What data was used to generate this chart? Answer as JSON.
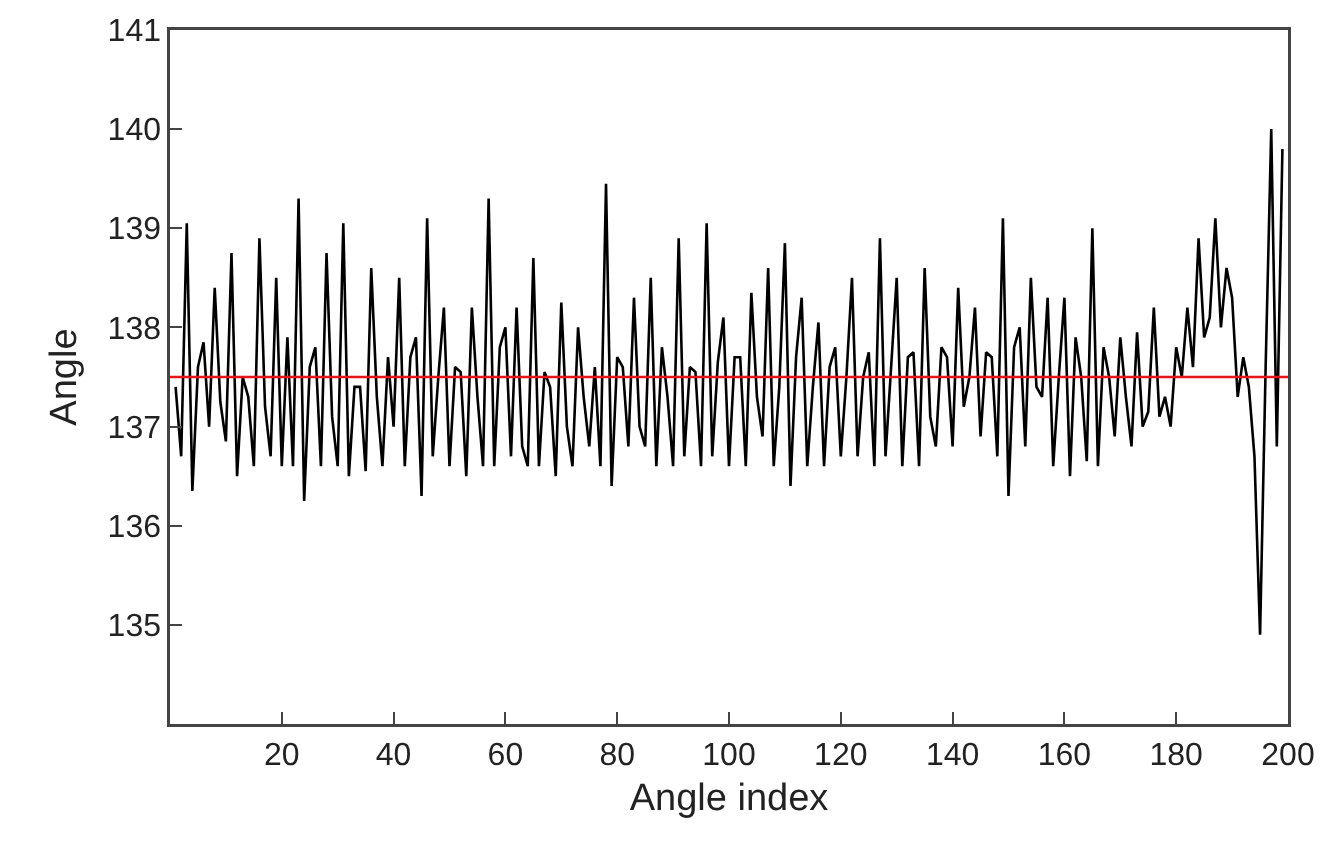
{
  "chart_data": {
    "type": "line",
    "xlabel": "Angle index",
    "ylabel": "Angle",
    "xlim": [
      0,
      200
    ],
    "xticks": [
      20,
      40,
      60,
      80,
      100,
      120,
      140,
      160,
      180,
      200
    ],
    "ylim": [
      134,
      141
    ],
    "yticks": [
      135,
      136,
      137,
      138,
      139,
      140,
      141
    ],
    "marker": "none",
    "line_style": "solid",
    "ref_lines": [
      {
        "axis": "y",
        "value": 137.5,
        "color": "#e8141b"
      }
    ],
    "series": [
      {
        "color": "#000000",
        "x": [
          1,
          2,
          3,
          4,
          5,
          6,
          7,
          8,
          9,
          10,
          11,
          12,
          13,
          14,
          15,
          16,
          17,
          18,
          19,
          20,
          21,
          22,
          23,
          24,
          25,
          26,
          27,
          28,
          29,
          30,
          31,
          32,
          33,
          34,
          35,
          36,
          37,
          38,
          39,
          40,
          41,
          42,
          43,
          44,
          45,
          46,
          47,
          48,
          49,
          50,
          51,
          52,
          53,
          54,
          55,
          56,
          57,
          58,
          59,
          60,
          61,
          62,
          63,
          64,
          65,
          66,
          67,
          68,
          69,
          70,
          71,
          72,
          73,
          74,
          75,
          76,
          77,
          78,
          79,
          80,
          81,
          82,
          83,
          84,
          85,
          86,
          87,
          88,
          89,
          90,
          91,
          92,
          93,
          94,
          95,
          96,
          97,
          98,
          99,
          100,
          101,
          102,
          103,
          104,
          105,
          106,
          107,
          108,
          109,
          110,
          111,
          112,
          113,
          114,
          115,
          116,
          117,
          118,
          119,
          120,
          121,
          122,
          123,
          124,
          125,
          126,
          127,
          128,
          129,
          130,
          131,
          132,
          133,
          134,
          135,
          136,
          137,
          138,
          139,
          140,
          141,
          142,
          143,
          144,
          145,
          146,
          147,
          148,
          149,
          150,
          151,
          152,
          153,
          154,
          155,
          156,
          157,
          158,
          159,
          160,
          161,
          162,
          163,
          164,
          165,
          166,
          167,
          168,
          169,
          170,
          171,
          172,
          173,
          174,
          175,
          176,
          177,
          178,
          179,
          180,
          181,
          182,
          183,
          184,
          185,
          186,
          187,
          188,
          189,
          190,
          191,
          192,
          193,
          194,
          195,
          196,
          197,
          198,
          199
        ],
        "values": [
          137.4,
          136.7,
          139.05,
          136.35,
          137.6,
          137.85,
          137.0,
          138.4,
          137.25,
          136.85,
          138.75,
          136.5,
          137.5,
          137.3,
          136.6,
          138.9,
          137.2,
          136.7,
          138.5,
          136.6,
          137.9,
          136.6,
          139.3,
          136.25,
          137.6,
          137.8,
          136.6,
          138.75,
          137.1,
          136.6,
          139.05,
          136.5,
          137.4,
          137.4,
          136.55,
          138.6,
          137.3,
          136.6,
          137.7,
          137.0,
          138.5,
          136.6,
          137.7,
          137.9,
          136.3,
          139.1,
          136.7,
          137.5,
          138.2,
          136.6,
          137.6,
          137.55,
          136.5,
          138.2,
          137.3,
          136.6,
          139.3,
          136.6,
          137.8,
          138.0,
          136.7,
          138.2,
          136.8,
          136.6,
          138.7,
          136.6,
          137.55,
          137.4,
          136.5,
          138.25,
          137.0,
          136.6,
          138.0,
          137.3,
          136.8,
          137.6,
          136.6,
          139.45,
          136.4,
          137.7,
          137.6,
          136.8,
          138.3,
          137.0,
          136.8,
          138.5,
          136.6,
          137.8,
          137.3,
          136.6,
          138.9,
          136.7,
          137.6,
          137.55,
          136.6,
          139.05,
          136.7,
          137.65,
          138.1,
          136.6,
          137.7,
          137.7,
          136.6,
          138.35,
          137.3,
          136.9,
          138.6,
          136.6,
          137.4,
          138.85,
          136.4,
          137.7,
          138.3,
          136.6,
          137.4,
          138.05,
          136.6,
          137.6,
          137.8,
          136.7,
          137.5,
          138.5,
          136.7,
          137.5,
          137.75,
          136.6,
          138.9,
          136.7,
          137.6,
          138.5,
          136.6,
          137.7,
          137.75,
          136.6,
          138.6,
          137.1,
          136.8,
          137.8,
          137.7,
          136.8,
          138.4,
          137.2,
          137.5,
          138.2,
          136.9,
          137.75,
          137.7,
          136.7,
          139.1,
          136.3,
          137.8,
          138.0,
          136.8,
          138.5,
          137.4,
          137.3,
          138.3,
          136.6,
          137.5,
          138.3,
          136.5,
          137.9,
          137.5,
          136.65,
          139.0,
          136.6,
          137.8,
          137.5,
          136.9,
          137.9,
          137.3,
          136.8,
          137.95,
          137.0,
          137.15,
          138.2,
          137.1,
          137.3,
          137.0,
          137.8,
          137.5,
          138.2,
          137.6,
          138.9,
          137.9,
          138.1,
          139.1,
          138.0,
          138.6,
          138.3,
          137.3,
          137.7,
          137.4,
          136.7,
          134.9,
          137.6,
          140.0,
          136.8,
          139.8
        ]
      }
    ]
  }
}
